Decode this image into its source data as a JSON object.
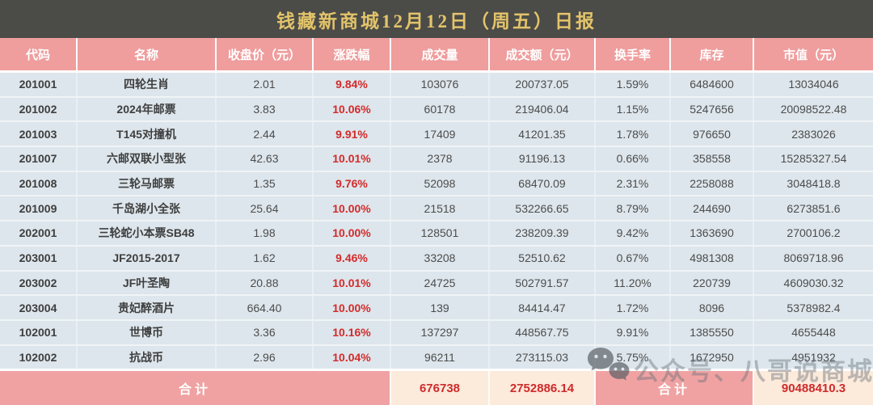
{
  "title": "钱藏新商城12月12日（周五）日报",
  "table": {
    "columns": [
      "代码",
      "名称",
      "收盘价（元）",
      "涨跌幅",
      "成交量",
      "成交额（元）",
      "换手率",
      "库存",
      "市值（元）"
    ],
    "rows": [
      [
        "201001",
        "四轮生肖",
        "2.01",
        "9.84%",
        "103076",
        "200737.05",
        "1.59%",
        "6484600",
        "13034046"
      ],
      [
        "201002",
        "2024年邮票",
        "3.83",
        "10.06%",
        "60178",
        "219406.04",
        "1.15%",
        "5247656",
        "20098522.48"
      ],
      [
        "201003",
        "T145对撞机",
        "2.44",
        "9.91%",
        "17409",
        "41201.35",
        "1.78%",
        "976650",
        "2383026"
      ],
      [
        "201007",
        "六邮双联小型张",
        "42.63",
        "10.01%",
        "2378",
        "91196.13",
        "0.66%",
        "358558",
        "15285327.54"
      ],
      [
        "201008",
        "三轮马邮票",
        "1.35",
        "9.76%",
        "52098",
        "68470.09",
        "2.31%",
        "2258088",
        "3048418.8"
      ],
      [
        "201009",
        "千岛湖小全张",
        "25.64",
        "10.00%",
        "21518",
        "532266.65",
        "8.79%",
        "244690",
        "6273851.6"
      ],
      [
        "202001",
        "三轮蛇小本票SB48",
        "1.98",
        "10.00%",
        "128501",
        "238209.39",
        "9.42%",
        "1363690",
        "2700106.2"
      ],
      [
        "203001",
        "JF2015-2017",
        "1.62",
        "9.46%",
        "33208",
        "52510.62",
        "0.67%",
        "4981308",
        "8069718.96"
      ],
      [
        "203002",
        "JF叶圣陶",
        "20.88",
        "10.01%",
        "24725",
        "502791.57",
        "11.20%",
        "220739",
        "4609030.32"
      ],
      [
        "203004",
        "贵妃醉酒片",
        "664.40",
        "10.00%",
        "139",
        "84414.47",
        "1.72%",
        "8096",
        "5378982.4"
      ],
      [
        "102001",
        "世博币",
        "3.36",
        "10.16%",
        "137297",
        "448567.75",
        "9.91%",
        "1385550",
        "4655448"
      ],
      [
        "102002",
        "抗战币",
        "2.96",
        "10.04%",
        "96211",
        "273115.03",
        "5.75%",
        "1672950",
        "4951932"
      ]
    ],
    "footer": {
      "label_left": "合计",
      "volume_total": "676738",
      "turnover_total": "2752886.14",
      "label_right": "合计",
      "market_value_total": "90488410.3"
    }
  },
  "watermark": {
    "icon": "wechat-icon",
    "text": "公众号、八哥说商城"
  },
  "colors": {
    "title_bar_bg": "#4b4b48",
    "title_gold": "#e3c46a",
    "header_pink": "#ef9d9d",
    "row_bg": "#dde6ec",
    "change_red": "#d42a2a",
    "footer_cream": "#fceadb",
    "footer_red": "#ce2b2b"
  }
}
